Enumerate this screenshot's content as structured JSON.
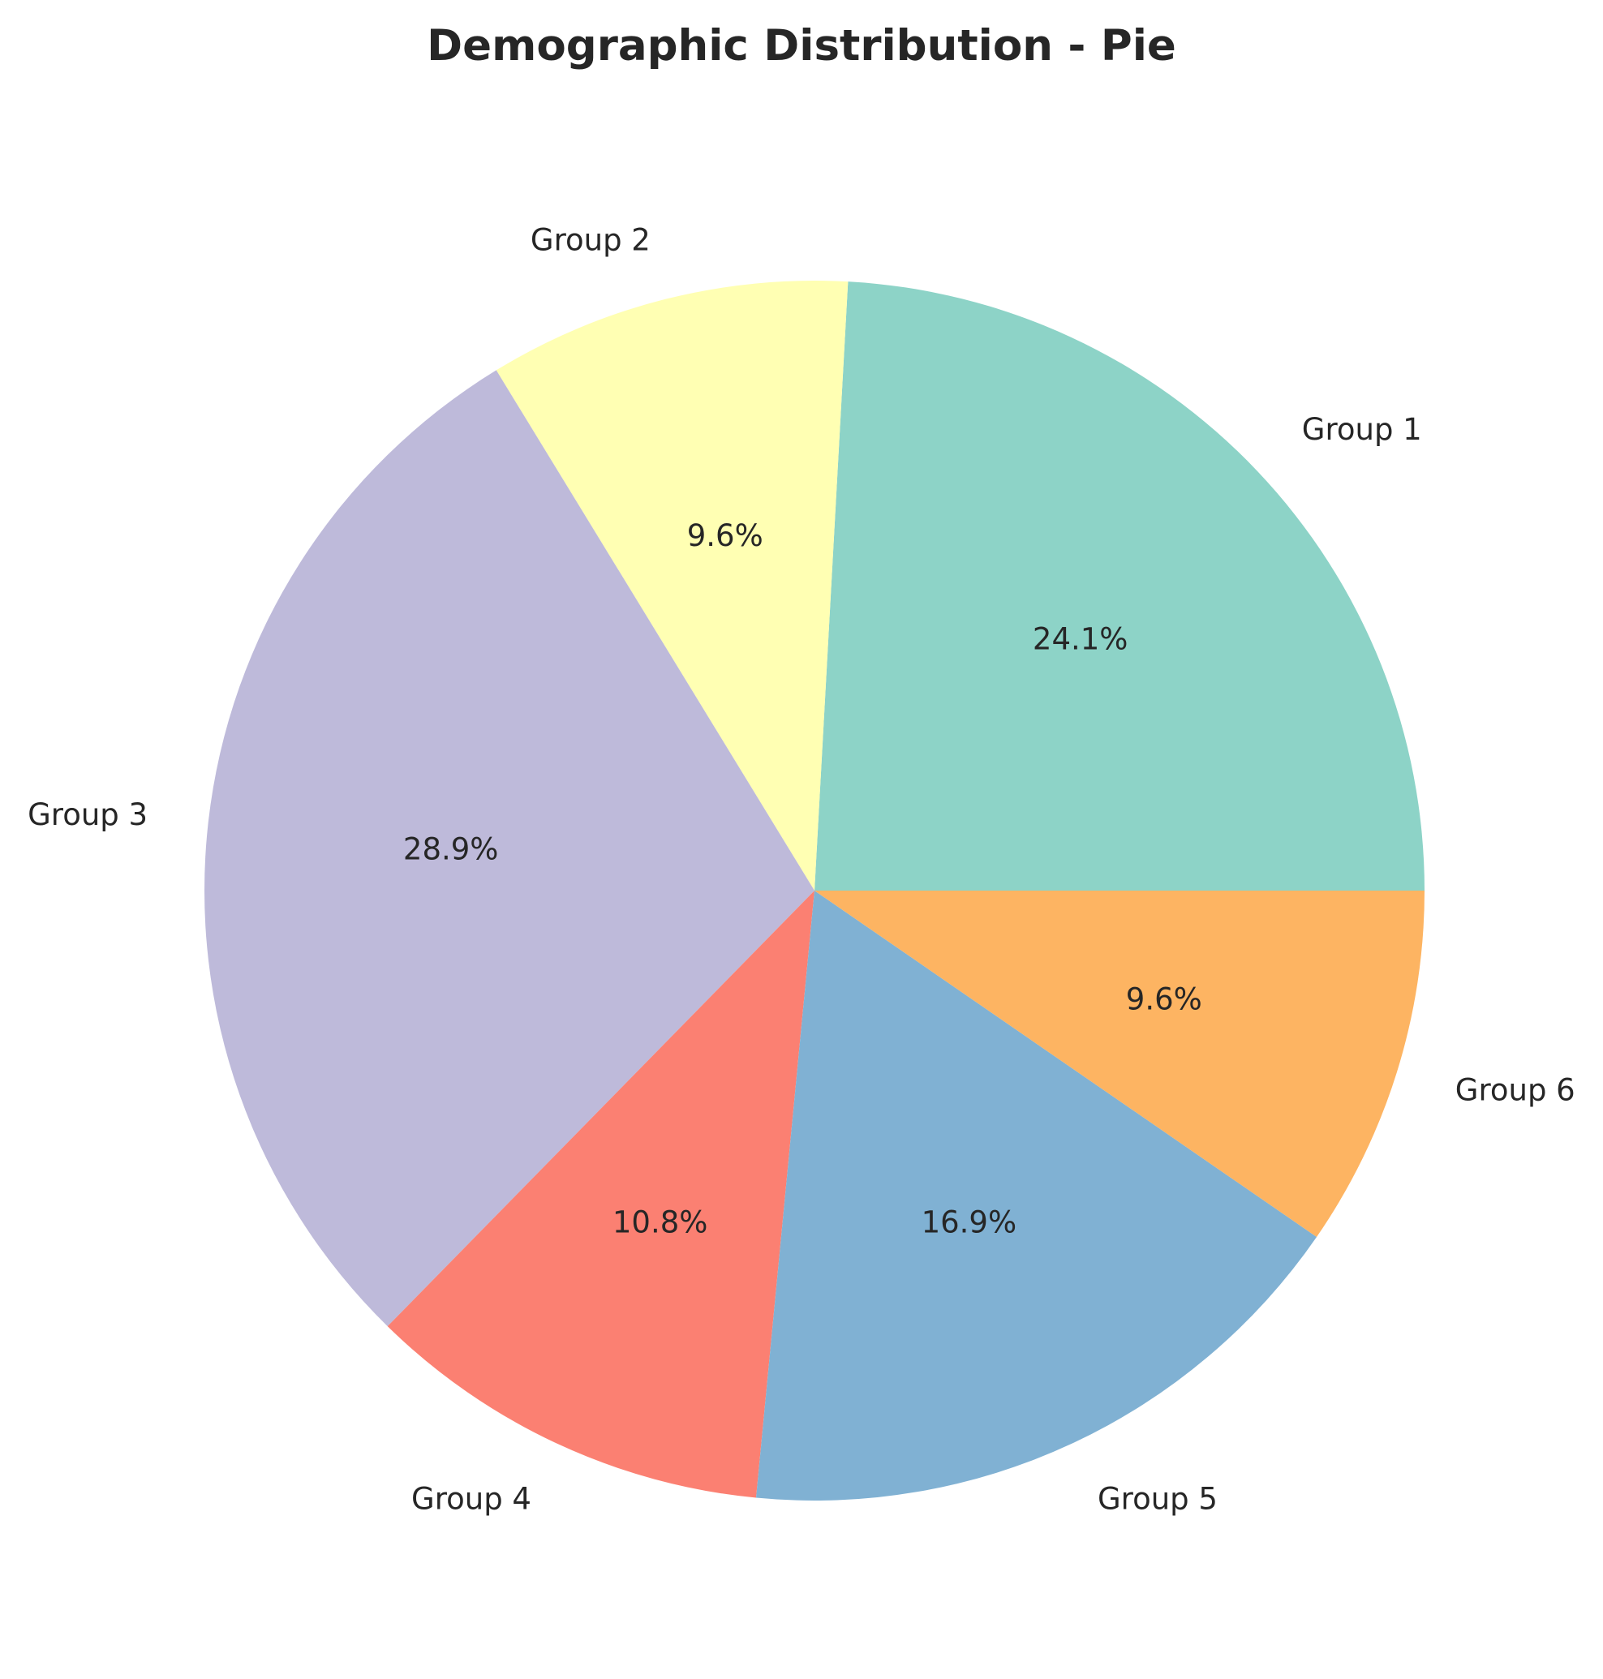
{
  "chart_data": {
    "type": "pie",
    "title": "Demographic Distribution - Pie",
    "categories": [
      "Group 1",
      "Group 2",
      "Group 3",
      "Group 4",
      "Group 5",
      "Group 6"
    ],
    "values": [
      24.1,
      9.6,
      28.9,
      10.8,
      16.9,
      9.6
    ],
    "percent_labels": [
      "24.1%",
      "9.6%",
      "28.9%",
      "10.8%",
      "16.9%",
      "9.6%"
    ],
    "colors": [
      "#8dd3c7",
      "#ffffb3",
      "#bebada",
      "#fb8072",
      "#80b1d3",
      "#fdb462"
    ],
    "start_angle_deg": 0,
    "direction": "counterclockwise"
  }
}
